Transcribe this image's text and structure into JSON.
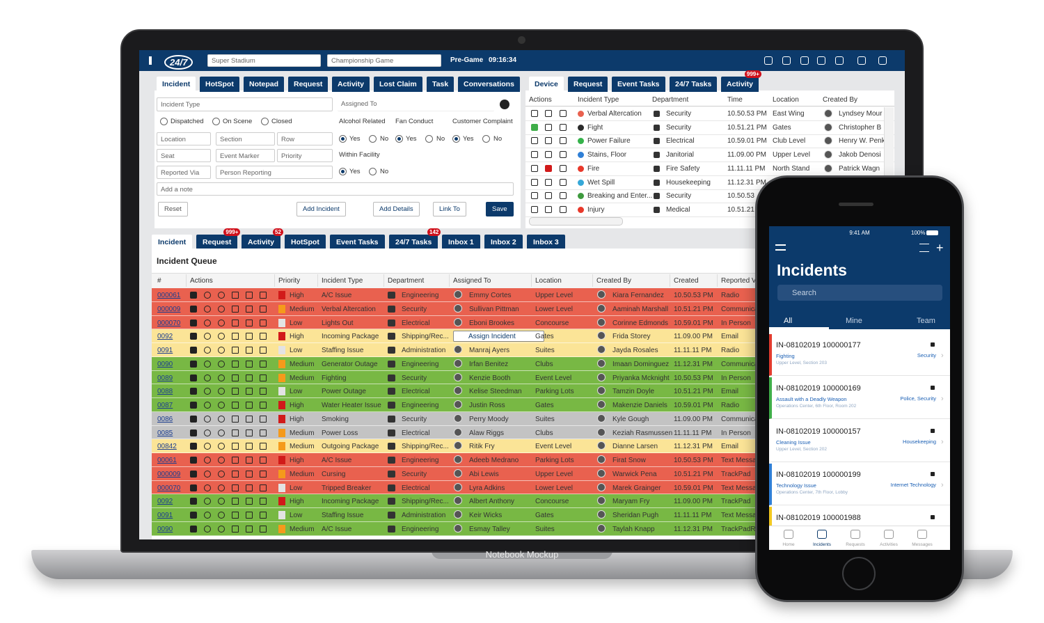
{
  "laptop_label": "Notebook Mockup",
  "header": {
    "logo": "24/7",
    "venue": "Super Stadium",
    "event": "Championship Game",
    "status": "Pre-Game",
    "clock": "09:16:34"
  },
  "form": {
    "tabs": [
      "Incident",
      "HotSpot",
      "Notepad",
      "Request",
      "Activity",
      "Lost Claim",
      "Task",
      "Conversations"
    ],
    "incident_type": "Incident Type",
    "assigned_to": "Assigned To",
    "statuses": [
      "Dispatched",
      "On Scene",
      "Closed"
    ],
    "fields": [
      "Location",
      "Section",
      "Row",
      "Seat",
      "Event Marker",
      "Priority",
      "Reported Via",
      "Person Reporting"
    ],
    "note": "Add a note",
    "questions": [
      "Alcohol Related",
      "Fan Conduct",
      "Customer Complaint",
      "Within Facility"
    ],
    "yes": "Yes",
    "no": "No",
    "buttons": [
      "Reset",
      "Add Incident",
      "Add Details",
      "Link To",
      "Save"
    ]
  },
  "device_panel": {
    "tabs": [
      {
        "label": "Device"
      },
      {
        "label": "Request"
      },
      {
        "label": "Event Tasks"
      },
      {
        "label": "24/7 Tasks"
      },
      {
        "label": "Activity",
        "badge": "999+"
      }
    ],
    "columns": [
      "Actions",
      "Incident Type",
      "Department",
      "Time",
      "Location",
      "Created By"
    ],
    "rows": [
      {
        "type": "Verbal Altercation",
        "dept": "Security",
        "time": "10.50.53 PM",
        "location": "East Wing",
        "by": "Lyndsey Mour"
      },
      {
        "type": "Fight",
        "dept": "Security",
        "time": "10.51.21 PM",
        "location": "Gates",
        "by": "Christopher B"
      },
      {
        "type": "Power Failure",
        "dept": "Electrical",
        "time": "10.59.01 PM",
        "location": "Club Level",
        "by": "Henry W. Penk"
      },
      {
        "type": "Stains, Floor",
        "dept": "Janitorial",
        "time": "11.09.00 PM",
        "location": "Upper Level",
        "by": "Jakob Denosi"
      },
      {
        "type": "Fire",
        "dept": "Fire Safety",
        "time": "11.11.11 PM",
        "location": "North Stand",
        "by": "Patrick Wagn"
      },
      {
        "type": "Wet Spill",
        "dept": "Housekeeping",
        "time": "11.12.31 PM"
      },
      {
        "type": "Breaking and Enter...",
        "dept": "Security",
        "time": "10.50.53"
      },
      {
        "type": "Injury",
        "dept": "Medical",
        "time": "10.51.21"
      }
    ]
  },
  "queue": {
    "tabs": [
      {
        "label": "Incident"
      },
      {
        "label": "Request",
        "badge": "999+"
      },
      {
        "label": "Activity",
        "badge": "52"
      },
      {
        "label": "HotSpot"
      },
      {
        "label": "Event Tasks"
      },
      {
        "label": "24/7 Tasks",
        "badge": "142"
      },
      {
        "label": "Inbox 1"
      },
      {
        "label": "Inbox 2"
      },
      {
        "label": "Inbox 3"
      }
    ],
    "title": "Incident Queue",
    "columns": [
      "#",
      "Actions",
      "Priority",
      "Incident Type",
      "Department",
      "Assigned To",
      "Location",
      "Created By",
      "Created",
      "Reported V"
    ],
    "priority_colors": {
      "High": "#d11a1a",
      "Medium": "#f59a1b",
      "Low": "#e3e3e3"
    },
    "rows": [
      {
        "id": "000061",
        "priority": "High",
        "type": "A/C Issue",
        "dept": "Engineering",
        "assigned": "Emmy Cortes",
        "location": "Upper Level",
        "created_by": "Kiara Fernandez",
        "created": "10.50.53 PM",
        "reported": "Radio",
        "color": "#e9614f"
      },
      {
        "id": "000009",
        "priority": "Medium",
        "type": "Verbal Altercation",
        "dept": "Security",
        "assigned": "Sullivan Pittman",
        "location": "Lower Level",
        "created_by": "Aaminah Marshall",
        "created": "10.51.21 PM",
        "reported": "Communica",
        "color": "#e9614f"
      },
      {
        "id": "000070",
        "priority": "Low",
        "type": "Lights Out",
        "dept": "Electrical",
        "assigned": "Eboni Brookes",
        "location": "Concourse",
        "created_by": "Corinne Edmonds",
        "created": "10.59.01 PM",
        "reported": "In Person",
        "color": "#e9614f"
      },
      {
        "id": "0092",
        "priority": "High",
        "type": "Incoming Package",
        "dept": "Shipping/Rec...",
        "assigned": "Assign Incident",
        "assign_button": true,
        "location": "Gates",
        "created_by": "Frida Storey",
        "created": "11.09.00 PM",
        "reported": "Email",
        "color": "#fbe497"
      },
      {
        "id": "0091",
        "priority": "Low",
        "type": "Staffing Issue",
        "dept": "Administration",
        "assigned": "Manraj Ayers",
        "location": "Suites",
        "created_by": "Jayda Rosales",
        "created": "11.11.11 PM",
        "reported": "Radio",
        "color": "#fbe497"
      },
      {
        "id": "0090",
        "priority": "Medium",
        "type": "Generator Outage",
        "dept": "Engineering",
        "assigned": "Irfan Benitez",
        "location": "Clubs",
        "created_by": "Imaan Dominguez",
        "created": "11.12.31 PM",
        "reported": "Communica",
        "color": "#78b844"
      },
      {
        "id": "0089",
        "priority": "Medium",
        "type": "Fighting",
        "dept": "Security",
        "assigned": "Kenzie Booth",
        "location": "Event Level",
        "created_by": "Priyanka Mcknight",
        "created": "10.50.53 PM",
        "reported": "In Person",
        "color": "#78b844"
      },
      {
        "id": "0088",
        "priority": "Low",
        "type": "Power Outage",
        "dept": "Electrical",
        "assigned": "Kelise Steedman",
        "location": "Parking Lots",
        "created_by": "Tamzin Doyle",
        "created": "10.51.21 PM",
        "reported": "Email",
        "color": "#78b844"
      },
      {
        "id": "0087",
        "priority": "High",
        "type": "Water Heater Issue",
        "dept": "Engineering",
        "assigned": "Justin Ross",
        "location": "Gates",
        "created_by": "Makenzie Daniels",
        "created": "10.59.01 PM",
        "reported": "Radio",
        "color": "#78b844"
      },
      {
        "id": "0086",
        "priority": "High",
        "type": "Smoking",
        "dept": "Security",
        "assigned": "Perry Moody",
        "location": "Suites",
        "created_by": "Kyle Gough",
        "created": "11.09.00 PM",
        "reported": "Communica",
        "color": "#c3c3c3"
      },
      {
        "id": "0085",
        "priority": "Medium",
        "type": "Power Loss",
        "dept": "Electrical",
        "assigned": "Alaw Riggs",
        "location": "Clubs",
        "created_by": "Keziah Rasmussen",
        "created": "11.11.11 PM",
        "reported": "In Person",
        "color": "#c3c3c3"
      },
      {
        "id": "00842",
        "priority": "Medium",
        "type": "Outgoing Package",
        "dept": "Shipping/Rec...",
        "assigned": "Ritik Fry",
        "location": "Event Level",
        "created_by": "Dianne Larsen",
        "created": "11.12.31 PM",
        "reported": "Email",
        "color": "#fbe497"
      },
      {
        "id": "00061",
        "priority": "High",
        "type": "A/C Issue",
        "dept": "Engineering",
        "assigned": "Adeeb Medrano",
        "location": "Parking Lots",
        "created_by": "Firat Snow",
        "created": "10.50.53 PM",
        "reported": "Text Messa",
        "color": "#e9614f"
      },
      {
        "id": "000009",
        "priority": "Medium",
        "type": "Cursing",
        "dept": "Security",
        "assigned": "Abi Lewis",
        "location": "Upper Level",
        "created_by": "Warwick Pena",
        "created": "10.51.21 PM",
        "reported": "TrackPad",
        "color": "#e9614f"
      },
      {
        "id": "000070",
        "priority": "Low",
        "type": "Tripped Breaker",
        "dept": "Electrical",
        "assigned": "Lyra Adkins",
        "location": "Lower Level",
        "created_by": "Marek Grainger",
        "created": "10.59.01 PM",
        "reported": "Text Messa",
        "color": "#e9614f"
      },
      {
        "id": "0092",
        "priority": "High",
        "type": "Incoming Package",
        "dept": "Shipping/Rec...",
        "assigned": "Albert Anthony",
        "location": "Concourse",
        "created_by": "Maryam Fry",
        "created": "11.09.00 PM",
        "reported": "TrackPad",
        "color": "#78b844"
      },
      {
        "id": "0091",
        "priority": "Low",
        "type": "Staffing Issue",
        "dept": "Administration",
        "assigned": "Keir Wicks",
        "location": "Gates",
        "created_by": "Sheridan Pugh",
        "created": "11.11.11 PM",
        "reported": "Text Messa",
        "color": "#78b844"
      },
      {
        "id": "0090",
        "priority": "Medium",
        "type": "A/C Issue",
        "dept": "Engineering",
        "assigned": "Esmay Talley",
        "location": "Suites",
        "created_by": "Taylah Knapp",
        "created": "11.12.31 PM",
        "reported": "TrackPadRa",
        "color": "#78b844"
      }
    ]
  },
  "phone": {
    "time": "9:41 AM",
    "battery": "100%",
    "title": "Incidents",
    "search": "Search",
    "tabs": [
      "All",
      "Mine",
      "Team"
    ],
    "cards": [
      {
        "id": "IN-08102019 100000177",
        "type": "Fighting",
        "place": "Upper Level, Section 203",
        "dept": "Security",
        "color": "#e23b2e"
      },
      {
        "id": "IN-08102019 100000169",
        "type": "Assault with a Deadly Weapon",
        "place": "Operations Center, 6th Floor, Room 202",
        "dept": "Police, Security",
        "color": "#3fae49"
      },
      {
        "id": "IN-08102019 100000157",
        "type": "Cleaning Issue",
        "place": "Upper Level, Section 202",
        "dept": "Housekeeping",
        "color": "#ffffff"
      },
      {
        "id": "IN-08102019 100000199",
        "type": "Technology Issue",
        "place": "Operations Center, 7th Floor, Lobby",
        "dept": "Internet Technology",
        "color": "#2f7fd6"
      },
      {
        "id": "IN-08102019 100001988",
        "color": "#f2c81f"
      }
    ],
    "nav": [
      "Home",
      "Incidents",
      "Requests",
      "Activities",
      "Messages"
    ]
  }
}
